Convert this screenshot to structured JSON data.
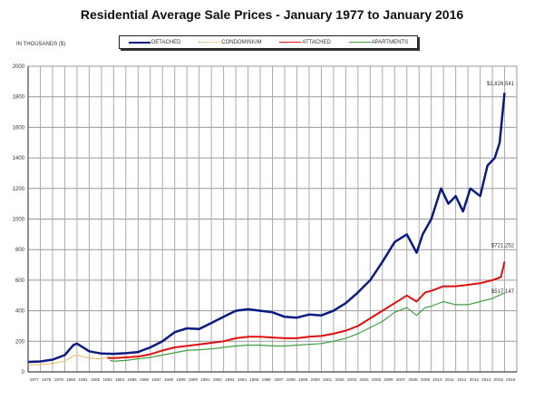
{
  "chart_data": {
    "type": "line",
    "title": "Residential Average Sale Prices  -  January 1977 to January 2016",
    "ylabel": "IN THOUSANDS ($)",
    "xlabel": "",
    "ylim": [
      0,
      2000
    ],
    "yticks": [
      0,
      200,
      400,
      600,
      800,
      1000,
      1200,
      1400,
      1600,
      1800,
      2000
    ],
    "xticks": [
      "1977",
      "1978",
      "1979",
      "1980",
      "1981",
      "1982",
      "1983",
      "1984",
      "1985",
      "1986",
      "1987",
      "1988",
      "1989",
      "1990",
      "1991",
      "1992",
      "1993",
      "1994",
      "1995",
      "1996",
      "1997",
      "1998",
      "1999",
      "2000",
      "2001",
      "2002",
      "2003",
      "2004",
      "2005",
      "2006",
      "2007",
      "2008",
      "2009",
      "2010",
      "2011",
      "2012",
      "2013",
      "2014",
      "2015",
      "2016"
    ],
    "grid": true,
    "legend_position": "top-center",
    "series": [
      {
        "name": "DETACHED",
        "color": "#0a1a80",
        "style": "solid",
        "x": [
          1977,
          1978,
          1979,
          1980,
          1980.7,
          1981,
          1981.5,
          1982,
          1983,
          1984,
          1985,
          1986,
          1987,
          1988,
          1989,
          1990,
          1991,
          1992,
          1993,
          1994,
          1995,
          1996,
          1997,
          1998,
          1999,
          2000,
          2001,
          2002,
          2003,
          2004,
          2005,
          2006,
          2007,
          2008,
          2008.8,
          2009.3,
          2010,
          2010.8,
          2011.4,
          2012,
          2012.6,
          2013.2,
          2014,
          2014.6,
          2015.2,
          2015.6,
          2016
        ],
        "y": [
          65,
          68,
          80,
          110,
          175,
          185,
          160,
          135,
          120,
          118,
          122,
          130,
          160,
          200,
          260,
          285,
          280,
          320,
          360,
          400,
          410,
          400,
          390,
          360,
          355,
          375,
          370,
          400,
          450,
          520,
          600,
          720,
          850,
          900,
          780,
          900,
          1000,
          1200,
          1100,
          1150,
          1050,
          1200,
          1150,
          1350,
          1400,
          1500,
          1827
        ]
      },
      {
        "name": "CONDOMINIUM",
        "color": "#f0a030",
        "style": "dotted",
        "x": [
          1977,
          1978,
          1979,
          1980,
          1980.7,
          1981,
          1982,
          1983,
          1983.6
        ],
        "y": [
          45,
          48,
          55,
          70,
          105,
          110,
          90,
          85,
          100
        ]
      },
      {
        "name": "ATTACHED",
        "color": "#e01010",
        "style": "solid",
        "x": [
          1983.5,
          1984,
          1985,
          1986,
          1987,
          1988,
          1989,
          1990,
          1991,
          1992,
          1993,
          1994,
          1995,
          1996,
          1997,
          1998,
          1999,
          2000,
          2001,
          2002,
          2003,
          2004,
          2005,
          2006,
          2007,
          2008,
          2008.8,
          2009.5,
          2010,
          2011,
          2012,
          2013,
          2014,
          2015,
          2015.7,
          2016
        ],
        "y": [
          90,
          90,
          95,
          100,
          115,
          140,
          160,
          170,
          180,
          190,
          200,
          220,
          230,
          230,
          225,
          220,
          220,
          230,
          235,
          250,
          270,
          300,
          350,
          400,
          450,
          500,
          460,
          520,
          530,
          560,
          560,
          570,
          580,
          600,
          620,
          721
        ]
      },
      {
        "name": "APARTMENTS",
        "color": "#40a040",
        "style": "solid",
        "x": [
          1983.7,
          1984,
          1985,
          1986,
          1987,
          1988,
          1989,
          1990,
          1991,
          1992,
          1993,
          1994,
          1995,
          1996,
          1997,
          1998,
          1999,
          2000,
          2001,
          2002,
          2003,
          2004,
          2005,
          2006,
          2007,
          2008,
          2008.8,
          2009.5,
          2010,
          2011,
          2012,
          2013,
          2014,
          2015,
          2016
        ],
        "y": [
          75,
          70,
          75,
          85,
          95,
          110,
          125,
          140,
          145,
          150,
          160,
          170,
          175,
          175,
          170,
          170,
          175,
          180,
          185,
          200,
          220,
          250,
          290,
          330,
          390,
          420,
          370,
          420,
          430,
          460,
          440,
          440,
          460,
          480,
          517
        ]
      }
    ],
    "annotations": [
      "$1,826,541",
      "$721,252",
      "$517,147"
    ]
  }
}
